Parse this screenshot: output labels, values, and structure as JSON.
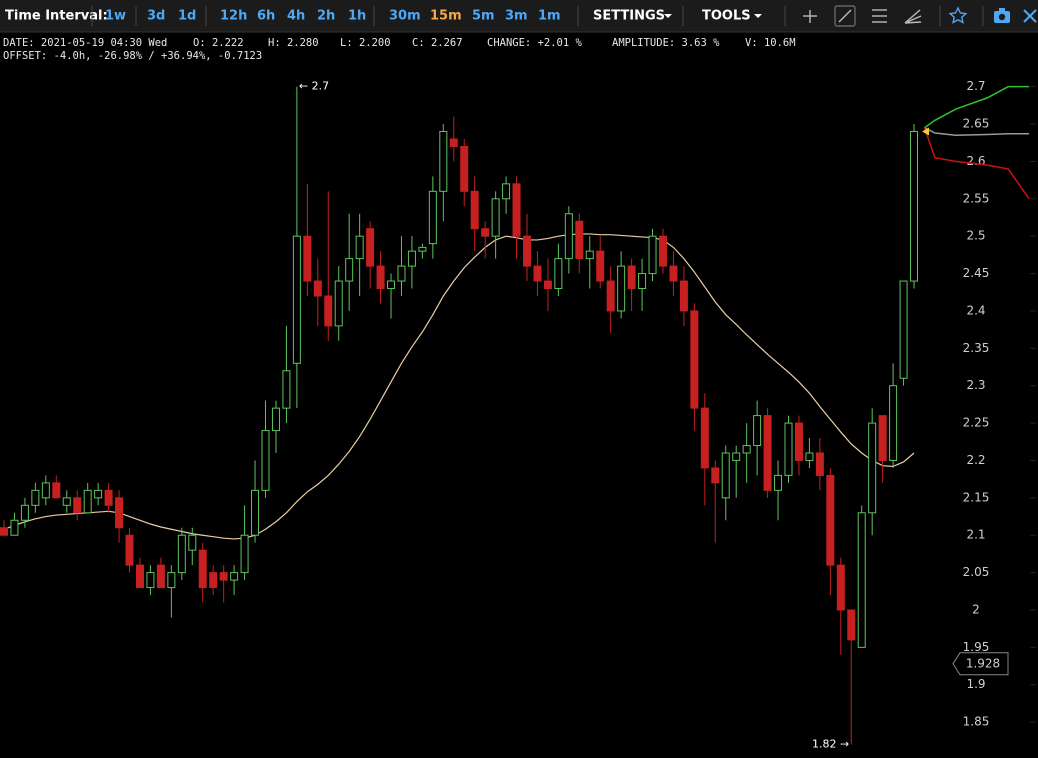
{
  "toolbar": {
    "label": "Time Interval:",
    "intervals": [
      "1w",
      "3d",
      "1d",
      "12h",
      "6h",
      "4h",
      "2h",
      "1h",
      "30m",
      "15m",
      "5m",
      "3m",
      "1m"
    ],
    "active_interval": 9,
    "settings": "SETTINGS",
    "tools": "TOOLS"
  },
  "info": {
    "line1": [
      "DATE: 2021-05-19 04:30 Wed",
      "O: 2.222",
      "H: 2.280",
      "L: 2.200",
      "C: 2.267",
      "CHANGE: +2.01 %",
      "AMPLITUDE: 3.63 %",
      "V: 10.6M"
    ],
    "line2": "OFFSET: -4.0h, -26.98% / +36.94%, -0.7123"
  },
  "chart_data": {
    "type": "candlestick",
    "open": [
      2.11,
      2.1,
      2.12,
      2.14,
      2.15,
      2.17,
      2.14,
      2.15,
      2.13,
      2.15,
      2.16,
      2.15,
      2.1,
      2.06,
      2.03,
      2.06,
      2.03,
      2.05,
      2.08,
      2.08,
      2.05,
      2.05,
      2.04,
      2.05,
      2.1,
      2.16,
      2.24,
      2.27,
      2.33,
      2.5,
      2.44,
      2.42,
      2.38,
      2.44,
      2.47,
      2.51,
      2.46,
      2.43,
      2.44,
      2.46,
      2.48,
      2.49,
      2.56,
      2.63,
      2.62,
      2.56,
      2.51,
      2.5,
      2.55,
      2.57,
      2.5,
      2.46,
      2.44,
      2.43,
      2.47,
      2.52,
      2.47,
      2.48,
      2.44,
      2.4,
      2.46,
      2.43,
      2.45,
      2.5,
      2.46,
      2.44,
      2.4,
      2.27,
      2.19,
      2.15,
      2.2,
      2.21,
      2.22,
      2.26,
      2.16,
      2.18,
      2.25,
      2.2,
      2.21,
      2.18,
      2.06,
      2.0,
      1.95,
      2.13,
      2.26,
      2.2,
      2.31,
      2.44
    ],
    "high": [
      2.12,
      2.13,
      2.15,
      2.17,
      2.18,
      2.18,
      2.16,
      2.16,
      2.17,
      2.17,
      2.17,
      2.16,
      2.11,
      2.07,
      2.06,
      2.07,
      2.06,
      2.11,
      2.11,
      2.09,
      2.06,
      2.06,
      2.06,
      2.14,
      2.2,
      2.28,
      2.28,
      2.38,
      2.7,
      2.57,
      2.47,
      2.56,
      2.46,
      2.53,
      2.53,
      2.52,
      2.48,
      2.45,
      2.5,
      2.5,
      2.49,
      2.58,
      2.65,
      2.66,
      2.63,
      2.58,
      2.52,
      2.56,
      2.58,
      2.58,
      2.53,
      2.48,
      2.47,
      2.49,
      2.54,
      2.53,
      2.5,
      2.5,
      2.46,
      2.48,
      2.47,
      2.47,
      2.51,
      2.51,
      2.48,
      2.46,
      2.41,
      2.29,
      2.2,
      2.22,
      2.22,
      2.25,
      2.28,
      2.27,
      2.2,
      2.26,
      2.26,
      2.23,
      2.23,
      2.19,
      2.07,
      2.0,
      2.14,
      2.27,
      2.26,
      2.33,
      2.44,
      2.65
    ],
    "low": [
      2.1,
      2.1,
      2.11,
      2.13,
      2.14,
      2.15,
      2.13,
      2.12,
      2.13,
      2.14,
      2.13,
      2.09,
      2.05,
      2.03,
      2.02,
      2.03,
      1.99,
      2.04,
      2.06,
      2.01,
      2.02,
      2.01,
      2.02,
      2.04,
      2.09,
      2.15,
      2.21,
      2.25,
      2.27,
      2.42,
      2.38,
      2.36,
      2.36,
      2.4,
      2.42,
      2.43,
      2.41,
      2.39,
      2.42,
      2.43,
      2.47,
      2.47,
      2.52,
      2.6,
      2.54,
      2.48,
      2.47,
      2.47,
      2.53,
      2.47,
      2.44,
      2.42,
      2.4,
      2.42,
      2.45,
      2.45,
      2.43,
      2.43,
      2.37,
      2.39,
      2.4,
      2.4,
      2.44,
      2.45,
      2.42,
      2.38,
      2.24,
      2.14,
      2.09,
      2.12,
      2.15,
      2.17,
      2.18,
      2.15,
      2.12,
      2.17,
      2.18,
      2.19,
      2.16,
      2.02,
      1.94,
      1.82,
      1.95,
      2.1,
      2.17,
      2.19,
      2.3,
      2.43
    ],
    "close": [
      2.1,
      2.12,
      2.14,
      2.16,
      2.17,
      2.15,
      2.15,
      2.13,
      2.16,
      2.16,
      2.14,
      2.11,
      2.06,
      2.03,
      2.05,
      2.03,
      2.05,
      2.1,
      2.1,
      2.03,
      2.03,
      2.04,
      2.05,
      2.1,
      2.16,
      2.24,
      2.27,
      2.32,
      2.5,
      2.44,
      2.42,
      2.38,
      2.44,
      2.47,
      2.5,
      2.46,
      2.43,
      2.44,
      2.46,
      2.48,
      2.485,
      2.56,
      2.64,
      2.62,
      2.56,
      2.51,
      2.5,
      2.55,
      2.57,
      2.5,
      2.46,
      2.44,
      2.43,
      2.47,
      2.53,
      2.47,
      2.48,
      2.44,
      2.4,
      2.46,
      2.43,
      2.45,
      2.5,
      2.46,
      2.44,
      2.4,
      2.27,
      2.19,
      2.17,
      2.21,
      2.21,
      2.22,
      2.26,
      2.16,
      2.18,
      2.25,
      2.2,
      2.21,
      2.18,
      2.06,
      2.0,
      1.96,
      2.13,
      2.25,
      2.2,
      2.3,
      2.44,
      2.64
    ],
    "up_color": "#5ec45e",
    "down_color": "#c62020",
    "ma": {
      "color": "#e9cda4",
      "values": [
        2.108,
        2.113,
        2.118,
        2.122,
        2.125,
        2.127,
        2.128,
        2.129,
        2.13,
        2.131,
        2.132,
        2.13,
        2.125,
        2.12,
        2.115,
        2.111,
        2.108,
        2.105,
        2.102,
        2.1,
        2.098,
        2.096,
        2.095,
        2.096,
        2.1,
        2.108,
        2.118,
        2.13,
        2.145,
        2.158,
        2.168,
        2.18,
        2.195,
        2.212,
        2.232,
        2.255,
        2.28,
        2.305,
        2.33,
        2.352,
        2.372,
        2.395,
        2.42,
        2.44,
        2.458,
        2.472,
        2.485,
        2.495,
        2.5,
        2.498,
        2.495,
        2.495,
        2.497,
        2.5,
        2.502,
        2.503,
        2.503,
        2.502,
        2.502,
        2.501,
        2.5,
        2.499,
        2.498,
        2.495,
        2.485,
        2.47,
        2.452,
        2.432,
        2.412,
        2.395,
        2.382,
        2.368,
        2.355,
        2.342,
        2.33,
        2.318,
        2.305,
        2.29,
        2.272,
        2.255,
        2.238,
        2.222,
        2.21,
        2.2,
        2.193,
        2.192,
        2.198,
        2.21
      ]
    },
    "forecast": {
      "x": [
        88,
        89,
        91,
        94,
        96,
        98
      ],
      "series": [
        {
          "color": "#2ec02e",
          "values": [
            2.645,
            2.655,
            2.67,
            2.685,
            2.7,
            2.7
          ]
        },
        {
          "color": "#9a9a9a",
          "values": [
            2.645,
            2.638,
            2.635,
            2.636,
            2.637,
            2.637
          ]
        },
        {
          "color": "#d01010",
          "values": [
            2.645,
            2.605,
            2.6,
            2.595,
            2.59,
            2.55
          ]
        }
      ]
    },
    "high_label": "← 2.7",
    "low_label": "1.82 →",
    "last_price": 1.928,
    "ylim": [
      1.802,
      2.733
    ],
    "yticks": [
      1.85,
      1.9,
      1.95,
      2,
      2.05,
      2.1,
      2.15,
      2.2,
      2.25,
      2.3,
      2.35,
      2.4,
      2.45,
      2.5,
      2.55,
      2.6,
      2.65,
      2.7
    ]
  }
}
